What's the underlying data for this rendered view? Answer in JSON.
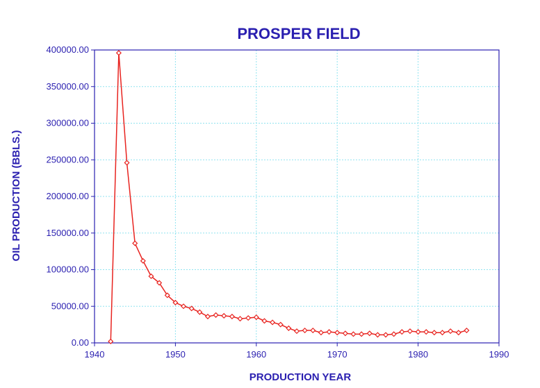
{
  "chart_data": {
    "type": "line",
    "title": "PROSPER FIELD",
    "xlabel": "PRODUCTION YEAR",
    "ylabel": "OIL PRODUCTION (BBLS.)",
    "xlim": [
      1940,
      1990
    ],
    "ylim": [
      0,
      400000
    ],
    "x_ticks": [
      "1940",
      "1950",
      "1960",
      "1970",
      "1980",
      "1990"
    ],
    "y_ticks": [
      "0.00",
      "50000.00",
      "100000.00",
      "150000.00",
      "200000.00",
      "250000.00",
      "300000.00",
      "350000.00",
      "400000.00"
    ],
    "grid": true,
    "colors": {
      "text": "#2a1fb0",
      "series": "#e8231f",
      "grid": "#8fe3f0"
    },
    "series": [
      {
        "x": [
          1942,
          1943,
          1944,
          1945,
          1946,
          1947,
          1948,
          1949,
          1950,
          1951,
          1952,
          1953,
          1954,
          1955,
          1956,
          1957,
          1958,
          1959,
          1960,
          1961,
          1962,
          1963,
          1964,
          1965,
          1966,
          1967,
          1968,
          1969,
          1970,
          1971,
          1972,
          1973,
          1974,
          1975,
          1976,
          1977,
          1978,
          1979,
          1980,
          1981,
          1982,
          1983,
          1984,
          1985,
          1986
        ],
        "values": [
          2000,
          396000,
          246000,
          136000,
          112000,
          91000,
          82000,
          65000,
          55000,
          50000,
          47000,
          42000,
          36000,
          38000,
          37000,
          36000,
          33000,
          34000,
          35000,
          30000,
          28000,
          25000,
          20000,
          16000,
          17000,
          17000,
          14000,
          15000,
          14000,
          13000,
          12000,
          12000,
          13000,
          11000,
          11000,
          12000,
          15000,
          16000,
          15000,
          15000,
          14000,
          14000,
          16000,
          14000,
          17000
        ]
      }
    ]
  }
}
